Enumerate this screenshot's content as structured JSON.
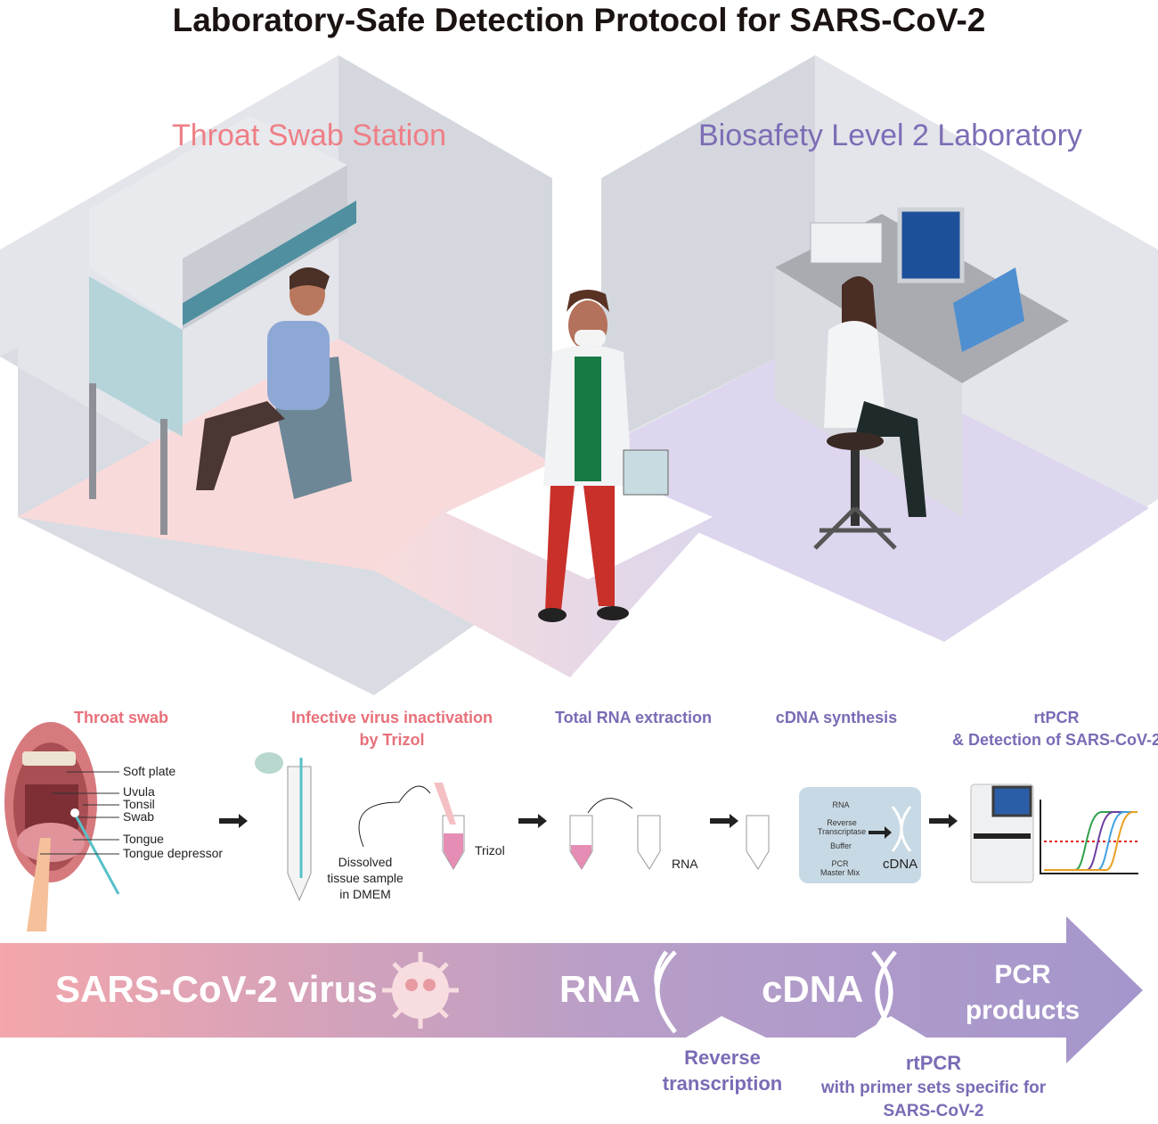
{
  "title": "Laboratory-Safe Detection Protocol for SARS-CoV-2",
  "rooms": [
    {
      "label": "Throat Swab Station",
      "color": "#ee7f86"
    },
    {
      "label": "Biosafety Level 2 Laboratory",
      "color": "#7d6db5"
    }
  ],
  "steps": [
    {
      "label": "Throat swab",
      "color": "#e8707a"
    },
    {
      "label": "Infective virus inactivation",
      "label2": "by Trizol",
      "color": "#e8707a"
    },
    {
      "label": "Total RNA extraction",
      "color": "#7b6bb5"
    },
    {
      "label": "cDNA synthesis",
      "color": "#7b6bb5"
    },
    {
      "label": "rtPCR",
      "label2": "& Detection of SARS-CoV-2",
      "color": "#7b6bb5"
    }
  ],
  "anatomy_labels": [
    "Soft plate",
    "Uvula",
    "Tonsil",
    "Swab",
    "Tongue",
    "Tongue depressor"
  ],
  "inactivation_labels": {
    "sample": [
      "Dissolved",
      "tissue sample",
      "in DMEM"
    ],
    "trizol": "Trizol"
  },
  "extraction_label": "RNA",
  "cdna_box": {
    "items": [
      "RNA",
      "Reverse",
      "Transcriptase",
      "Buffer",
      "PCR",
      "Master Mix"
    ],
    "product": "cDNA"
  },
  "pipeline": {
    "stages": [
      "SARS-CoV-2 virus",
      "RNA",
      "cDNA",
      "PCR",
      "products"
    ],
    "transitions": [
      {
        "lines": [
          "Reverse",
          "transcription"
        ]
      },
      {
        "lines": [
          "rtPCR",
          "with primer sets specific for",
          "SARS-CoV-2"
        ]
      }
    ],
    "gradient": [
      "#f3a6ab",
      "#a496cc"
    ]
  },
  "icons": [
    "virus-icon",
    "dna-icon",
    "arrow-right-icon",
    "centrifuge-tube-icon",
    "pcr-machine-icon",
    "amplification-curve-icon"
  ]
}
